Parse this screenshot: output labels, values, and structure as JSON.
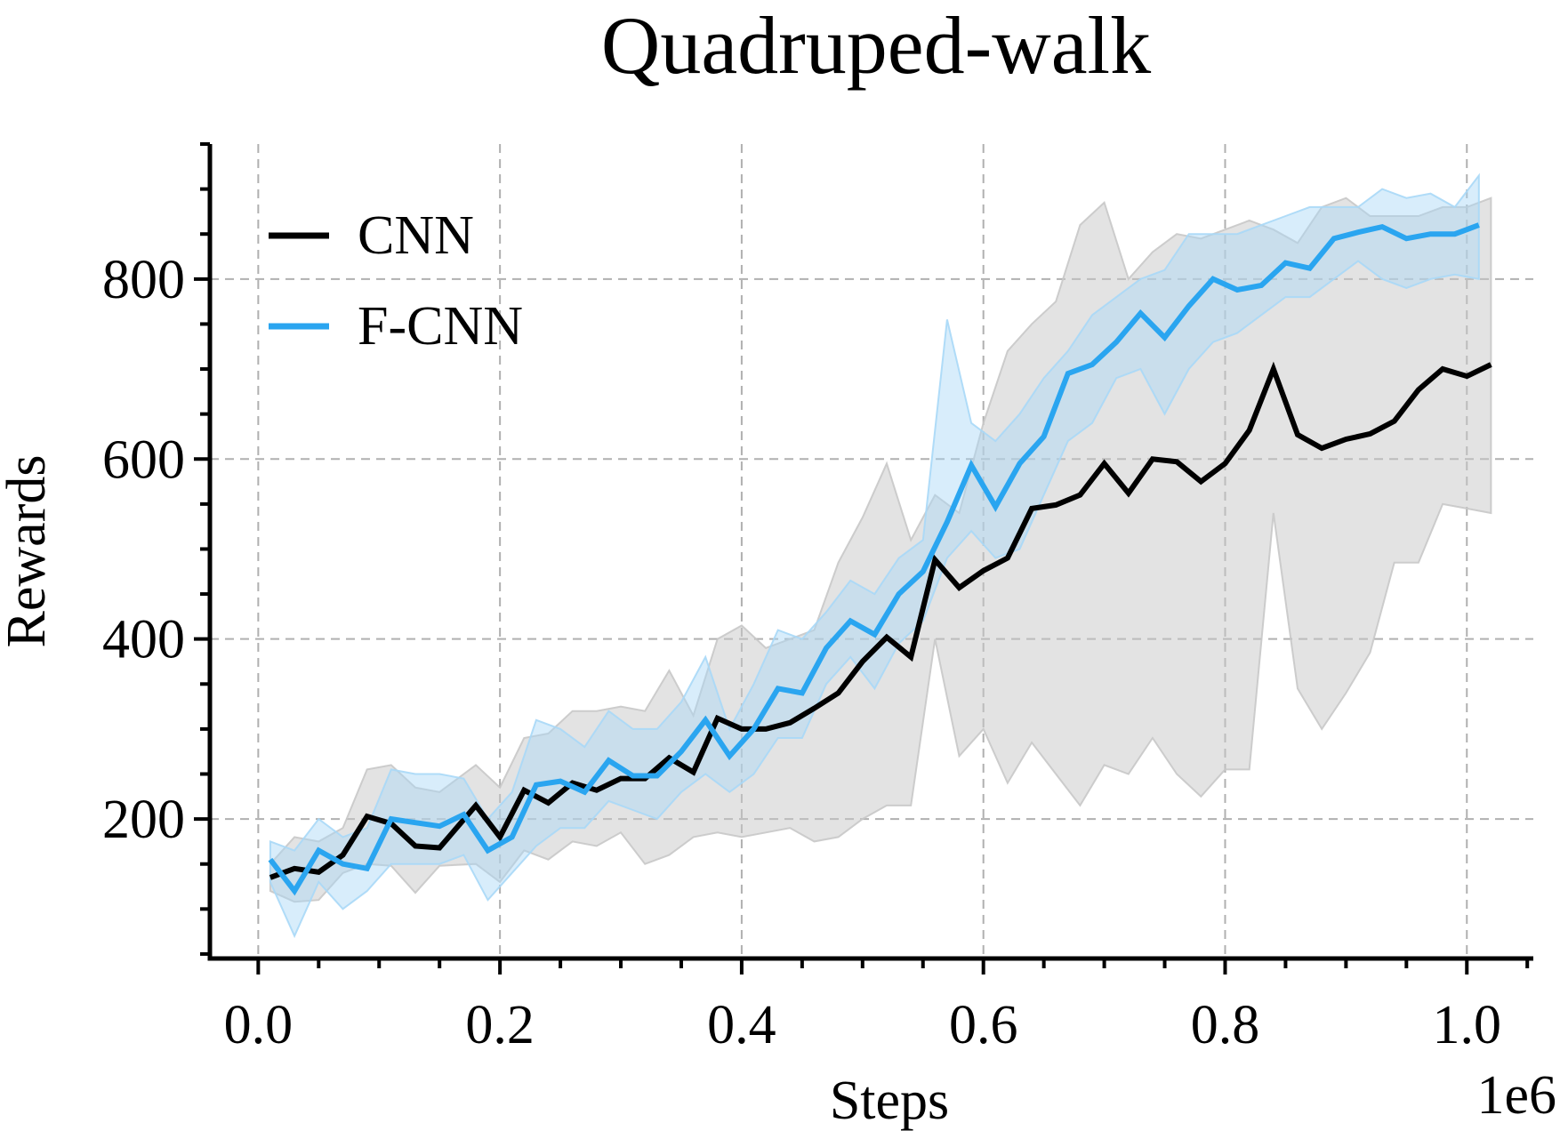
{
  "chart_data": {
    "type": "line",
    "title": "Quadruped-walk",
    "xlabel": "Steps",
    "ylabel": "Rewards",
    "x_offset_label": "1e6",
    "xlim": [
      -0.04,
      1.055
    ],
    "ylim": [
      45,
      950
    ],
    "xticks": [
      0.0,
      0.2,
      0.4,
      0.6,
      0.8,
      1.0
    ],
    "xtick_labels": [
      "0.0",
      "0.2",
      "0.4",
      "0.6",
      "0.8",
      "1.0"
    ],
    "yticks": [
      200,
      400,
      600,
      800
    ],
    "ytick_labels": [
      "200",
      "400",
      "600",
      "800"
    ],
    "x_minor_step": 0.05,
    "y_minor_step": 50,
    "grid": true,
    "legend_position": "top-left",
    "series": [
      {
        "name": "CNN",
        "color": "#000000",
        "band_color": "#c8c8c8",
        "x": [
          0.01,
          0.03,
          0.05,
          0.07,
          0.09,
          0.11,
          0.13,
          0.15,
          0.18,
          0.2,
          0.22,
          0.24,
          0.26,
          0.28,
          0.3,
          0.32,
          0.34,
          0.36,
          0.38,
          0.4,
          0.42,
          0.44,
          0.46,
          0.48,
          0.5,
          0.52,
          0.54,
          0.56,
          0.58,
          0.6,
          0.62,
          0.64,
          0.66,
          0.68,
          0.7,
          0.72,
          0.74,
          0.76,
          0.78,
          0.8,
          0.82,
          0.84,
          0.86,
          0.88,
          0.9,
          0.92,
          0.94,
          0.96,
          0.98,
          1.0,
          1.02
        ],
        "y": [
          135,
          145,
          141,
          160,
          203,
          195,
          170,
          168,
          215,
          180,
          232,
          218,
          240,
          232,
          245,
          245,
          268,
          252,
          312,
          300,
          300,
          307,
          323,
          340,
          375,
          402,
          380,
          488,
          457,
          476,
          490,
          545,
          549,
          560,
          595,
          562,
          600,
          597,
          575,
          595,
          632,
          700,
          627,
          612,
          622,
          628,
          642,
          677,
          700,
          692,
          705
        ],
        "lower": [
          120,
          108,
          110,
          140,
          150,
          148,
          118,
          148,
          150,
          130,
          165,
          155,
          175,
          170,
          185,
          150,
          160,
          180,
          185,
          180,
          185,
          190,
          175,
          180,
          200,
          215,
          215,
          400,
          270,
          300,
          240,
          285,
          250,
          215,
          260,
          250,
          290,
          250,
          225,
          255,
          255,
          540,
          345,
          300,
          340,
          385,
          485,
          485,
          550,
          545,
          540
        ],
        "upper": [
          150,
          180,
          175,
          190,
          255,
          260,
          235,
          230,
          260,
          235,
          290,
          295,
          320,
          320,
          325,
          320,
          365,
          315,
          400,
          415,
          390,
          400,
          410,
          485,
          535,
          595,
          510,
          560,
          540,
          640,
          720,
          750,
          775,
          860,
          885,
          800,
          830,
          850,
          845,
          855,
          865,
          855,
          840,
          880,
          890,
          870,
          870,
          870,
          880,
          880,
          890
        ]
      },
      {
        "name": "F-CNN",
        "color": "#2aa5f0",
        "band_color": "#a8d8f7",
        "x": [
          0.01,
          0.03,
          0.05,
          0.07,
          0.09,
          0.11,
          0.13,
          0.15,
          0.17,
          0.19,
          0.21,
          0.23,
          0.25,
          0.27,
          0.29,
          0.31,
          0.33,
          0.35,
          0.37,
          0.39,
          0.41,
          0.43,
          0.45,
          0.47,
          0.49,
          0.51,
          0.53,
          0.55,
          0.57,
          0.59,
          0.61,
          0.63,
          0.65,
          0.67,
          0.69,
          0.71,
          0.73,
          0.75,
          0.77,
          0.79,
          0.81,
          0.83,
          0.85,
          0.87,
          0.89,
          0.91,
          0.93,
          0.95,
          0.97,
          0.99,
          1.01
        ],
        "y": [
          155,
          120,
          165,
          150,
          145,
          200,
          196,
          192,
          205,
          165,
          180,
          238,
          242,
          230,
          265,
          248,
          248,
          275,
          310,
          270,
          300,
          345,
          340,
          390,
          420,
          405,
          450,
          475,
          530,
          593,
          547,
          595,
          625,
          695,
          705,
          730,
          762,
          735,
          770,
          800,
          788,
          793,
          818,
          812,
          845,
          852,
          858,
          845,
          850,
          850,
          860
        ],
        "lower": [
          130,
          70,
          130,
          100,
          120,
          150,
          150,
          150,
          160,
          110,
          140,
          170,
          190,
          190,
          220,
          210,
          200,
          230,
          250,
          230,
          250,
          290,
          290,
          350,
          380,
          345,
          395,
          420,
          490,
          520,
          490,
          500,
          560,
          620,
          640,
          690,
          700,
          650,
          700,
          730,
          740,
          760,
          780,
          780,
          800,
          820,
          800,
          790,
          800,
          805,
          800
        ],
        "upper": [
          175,
          165,
          200,
          180,
          190,
          255,
          250,
          250,
          245,
          200,
          230,
          310,
          300,
          280,
          320,
          300,
          300,
          330,
          380,
          300,
          350,
          410,
          400,
          430,
          465,
          450,
          490,
          510,
          755,
          640,
          620,
          650,
          690,
          720,
          760,
          780,
          800,
          810,
          850,
          850,
          850,
          860,
          870,
          880,
          880,
          880,
          900,
          890,
          895,
          880,
          915
        ]
      }
    ]
  }
}
